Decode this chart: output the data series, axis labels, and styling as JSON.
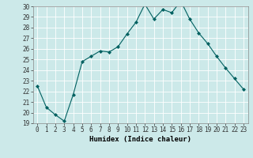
{
  "x": [
    0,
    1,
    2,
    3,
    4,
    5,
    6,
    7,
    8,
    9,
    10,
    11,
    12,
    13,
    14,
    15,
    16,
    17,
    18,
    19,
    20,
    21,
    22,
    23
  ],
  "y": [
    22.5,
    20.5,
    19.8,
    19.2,
    21.7,
    24.8,
    25.3,
    25.8,
    25.7,
    26.2,
    27.4,
    28.5,
    30.2,
    28.8,
    29.7,
    29.4,
    30.5,
    28.8,
    27.5,
    26.5,
    25.3,
    24.2,
    23.2,
    22.2
  ],
  "line_color": "#006060",
  "marker": "D",
  "marker_size": 2,
  "bg_color": "#cce9e9",
  "grid_color": "#ffffff",
  "xlabel": "Humidex (Indice chaleur)",
  "ylim": [
    19,
    30
  ],
  "xlim_min": -0.5,
  "xlim_max": 23.5,
  "yticks": [
    19,
    20,
    21,
    22,
    23,
    24,
    25,
    26,
    27,
    28,
    29,
    30
  ],
  "xticks": [
    0,
    1,
    2,
    3,
    4,
    5,
    6,
    7,
    8,
    9,
    10,
    11,
    12,
    13,
    14,
    15,
    16,
    17,
    18,
    19,
    20,
    21,
    22,
    23
  ],
  "tick_fontsize": 5.5,
  "label_fontsize": 6.5
}
